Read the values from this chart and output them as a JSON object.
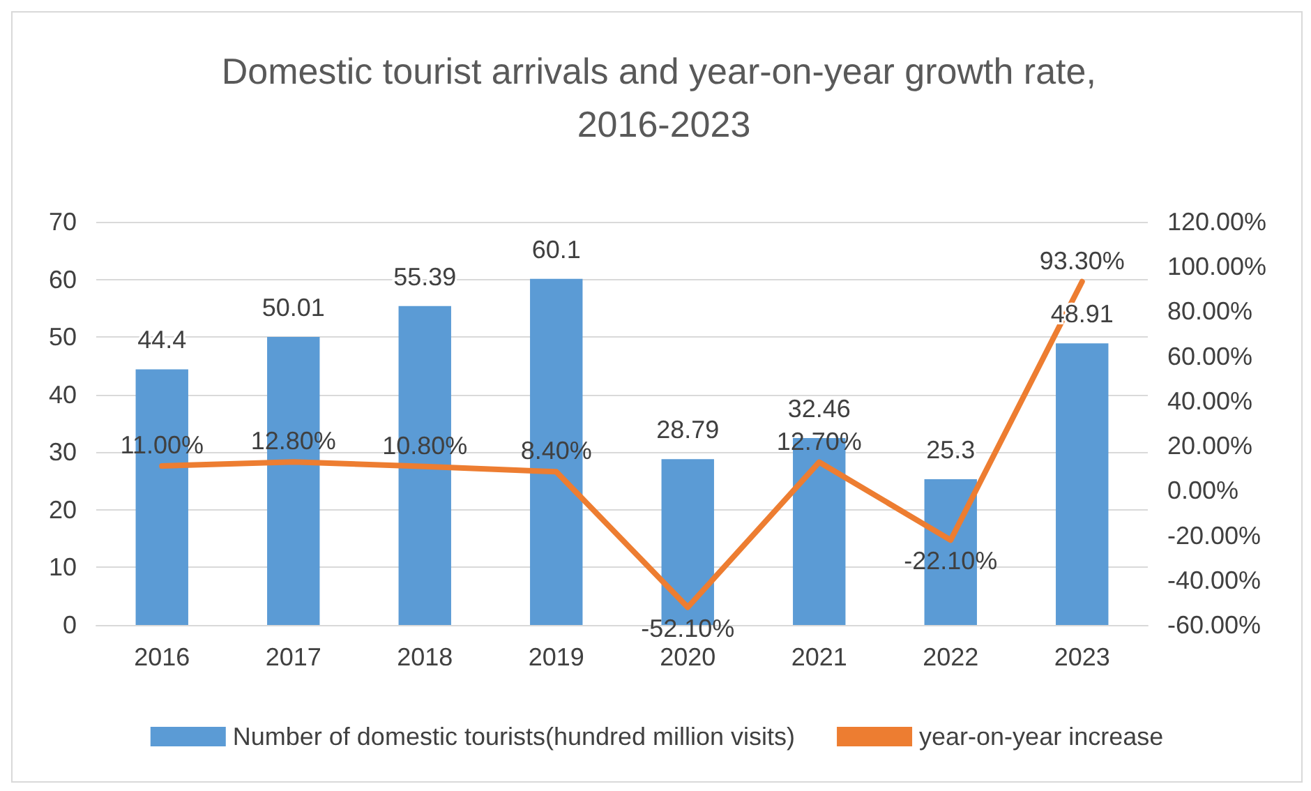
{
  "chart_data": {
    "type": "bar",
    "title": "Domestic tourist arrivals and year-on-year growth rate, 2016-2023",
    "categories": [
      "2016",
      "2017",
      "2018",
      "2019",
      "2020",
      "2021",
      "2022",
      "2023"
    ],
    "series": [
      {
        "name": "Number of domestic tourists(hundred million visits)",
        "color": "#5b9bd5",
        "values": [
          44.4,
          50.01,
          55.39,
          60.1,
          28.79,
          32.46,
          25.3,
          48.91
        ],
        "value_labels": [
          "44.4",
          "50.01",
          "55.39",
          "60.1",
          "28.79",
          "32.46",
          "25.3",
          "48.91"
        ]
      },
      {
        "name": "year-on-year increase",
        "type": "line",
        "axis": "y2",
        "color": "#ed7d31",
        "values": [
          11,
          12.8,
          10.8,
          8.4,
          -52.1,
          12.7,
          -22.1,
          93.3
        ],
        "value_labels": [
          "11.00%",
          "12.80%",
          "10.80%",
          "8.40%",
          "-52.10%",
          "12.70%",
          "-22.10%",
          "93.30%"
        ]
      }
    ],
    "ylim": [
      0,
      70
    ],
    "yticks": [
      0,
      10,
      20,
      30,
      40,
      50,
      60,
      70
    ],
    "y2lim": [
      -60,
      120
    ],
    "y2ticks": [
      {
        "value": -60,
        "label": "-60.00%"
      },
      {
        "value": -40,
        "label": "-40.00%"
      },
      {
        "value": -20,
        "label": "-20.00%"
      },
      {
        "value": 0,
        "label": "0.00%"
      },
      {
        "value": 20,
        "label": "20.00%"
      },
      {
        "value": 40,
        "label": "40.00%"
      },
      {
        "value": 60,
        "label": "60.00%"
      },
      {
        "value": 80,
        "label": "80.00%"
      },
      {
        "value": 100,
        "label": "100.00%"
      },
      {
        "value": 120,
        "label": "120.00%"
      }
    ],
    "grid": "y",
    "legend": "bottom",
    "marker": "none",
    "line_style": "solid"
  }
}
